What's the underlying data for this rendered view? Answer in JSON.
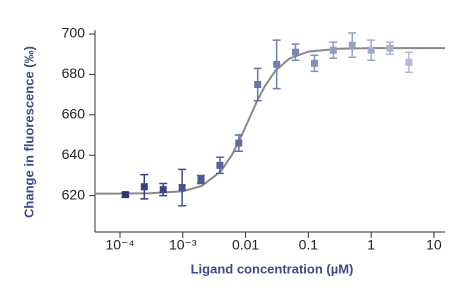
{
  "chart_data": {
    "type": "scatter",
    "xlabel": "Ligand concentration (µM)",
    "ylabel": "Change in fluorescence (‰)",
    "x": [
      0.000122,
      0.000244,
      0.000488,
      0.000977,
      0.00195,
      0.0039,
      0.0078,
      0.0156,
      0.03125,
      0.0625,
      0.125,
      0.25,
      0.5,
      1,
      2,
      4
    ],
    "series": [
      {
        "values": [
          620.5,
          624.4,
          623,
          624,
          628,
          635,
          646,
          675,
          685,
          691,
          685.5,
          692,
          694.5,
          692,
          693,
          686
        ],
        "errors": [
          1,
          6,
          3,
          9,
          2,
          4,
          4,
          8,
          12,
          4,
          4,
          4,
          6,
          5,
          3,
          5
        ],
        "colors": [
          "#2b3679",
          "#33407f",
          "#3b4886",
          "#44518c",
          "#4d5a93",
          "#56639a",
          "#5f6ca1",
          "#6875a8",
          "#727fae",
          "#7b88b5",
          "#8491bc",
          "#8d9ac2",
          "#96a2c8",
          "#a0aacd",
          "#aab1d2",
          "#b5b8d8"
        ]
      }
    ],
    "fit": {
      "color": "#8a8a8a",
      "x": [
        4e-05,
        0.0001,
        0.0003,
        0.001,
        0.002,
        0.004,
        0.006,
        0.008,
        0.01,
        0.012,
        0.015,
        0.02,
        0.03,
        0.05,
        0.1,
        0.3,
        1,
        15
      ],
      "values": [
        621,
        621,
        621.2,
        622.2,
        624.8,
        631.9,
        639.9,
        647.5,
        654.1,
        659.6,
        666.3,
        673.9,
        681.9,
        687.9,
        691.3,
        692.7,
        693,
        693
      ]
    },
    "xscale": "log",
    "xlim": [
      4e-05,
      15
    ],
    "xticks": [
      {
        "value": 0.0001,
        "label": "10⁻⁴"
      },
      {
        "value": 0.001,
        "label": "10⁻³"
      },
      0.01,
      0.1,
      1,
      10
    ],
    "ylim": [
      602,
      702
    ],
    "yticks": [
      620,
      640,
      660,
      680,
      700
    ]
  }
}
